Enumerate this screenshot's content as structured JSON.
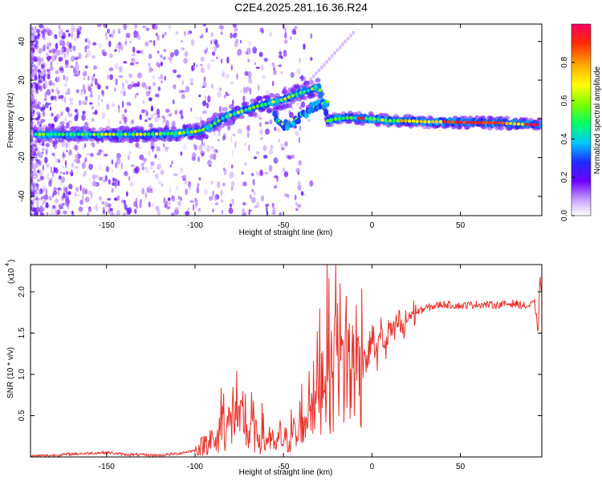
{
  "title": "C2E4.2025.281.16.36.R24",
  "colors": {
    "snr_line": "#e8312b",
    "axis": "#000000",
    "background": "#ffffff"
  },
  "chart_data": [
    {
      "type": "heatmap",
      "xlabel": "Height of straight line (km)",
      "ylabel": "Frequency (Hz)",
      "xlim": [
        -193,
        96
      ],
      "ylim": [
        -50,
        49
      ],
      "xticks": [
        -150,
        -100,
        -50,
        0,
        50
      ],
      "yticks": [
        -40,
        -20,
        0,
        20,
        40
      ],
      "ridge": {
        "x": [
          -190,
          -170,
          -150,
          -130,
          -110,
          -100,
          -95,
          -90,
          -85,
          -80,
          -75,
          -70,
          -65,
          -60,
          -55,
          -50,
          -45,
          -40,
          -35,
          -30,
          -25,
          -20,
          -15,
          -10,
          -5,
          0,
          5,
          10,
          20,
          30,
          40,
          50,
          60,
          70,
          80,
          90,
          95
        ],
        "y": [
          -8,
          -8,
          -8,
          -8,
          -7.5,
          -6.5,
          -5.5,
          -3,
          0,
          2,
          3.5,
          5,
          6.5,
          7.5,
          9,
          10,
          12,
          13.5,
          15,
          17,
          -1,
          0,
          0.5,
          0.5,
          0.2,
          0,
          -0.5,
          -1,
          -1,
          -1.5,
          -1.5,
          -1.8,
          -2,
          -2,
          -2.5,
          -3,
          -3
        ]
      },
      "branch": {
        "x": [
          -55,
          -50,
          -45,
          -40,
          -35,
          -30,
          -25
        ],
        "y": [
          1,
          -3,
          -2,
          2,
          5,
          7,
          9
        ]
      },
      "colorbar": {
        "label": "Normalized spectral amplitude",
        "ticks": [
          "0.0",
          "0.2",
          "0.4",
          "0.6",
          "0.8"
        ],
        "range": [
          0,
          1
        ]
      }
    },
    {
      "type": "line",
      "xlabel": "Height of straight line (km)",
      "ylabel": "SNR (10 * v/v)",
      "y_scale_label": "(x10",
      "y_scale_exponent": "4",
      "xlim": [
        -193,
        96
      ],
      "ylim": [
        0,
        23300
      ],
      "xticks": [
        -150,
        -100,
        -50,
        0,
        50
      ],
      "yticks": [
        "0.5",
        "1.0",
        "1.5",
        "2.0"
      ],
      "series": [
        {
          "name": "SNR",
          "x": [
            -193,
            -180,
            -170,
            -160,
            -150,
            -140,
            -120,
            -110,
            -100,
            -95,
            -92,
            -88,
            -85,
            -80,
            -77,
            -75,
            -72,
            -70,
            -68,
            -65,
            -62,
            -60,
            -58,
            -55,
            -52,
            -50,
            -48,
            -45,
            -42,
            -40,
            -38,
            -35,
            -32,
            -30,
            -28,
            -25,
            -22,
            -20,
            -18,
            -16,
            -15,
            -12,
            -10,
            -8,
            -5,
            -3,
            0,
            3,
            5,
            8,
            10,
            12,
            15,
            18,
            20,
            25,
            30,
            40,
            50,
            60,
            70,
            80,
            88,
            92,
            94,
            95,
            96
          ],
          "y": [
            100,
            200,
            350,
            450,
            550,
            300,
            200,
            400,
            800,
            1500,
            2500,
            1200,
            5500,
            3500,
            7000,
            3200,
            5500,
            2000,
            4500,
            2000,
            3500,
            1500,
            3000,
            1000,
            2500,
            2000,
            2000,
            3500,
            1800,
            6000,
            3000,
            9000,
            5500,
            12000,
            10000,
            14000,
            8000,
            23300,
            12500,
            9500,
            14500,
            9000,
            13500,
            10500,
            14000,
            11000,
            15000,
            12000,
            15500,
            13000,
            16000,
            14500,
            16500,
            15000,
            17000,
            17500,
            18000,
            18500,
            18300,
            18500,
            18400,
            18600,
            18200,
            18700,
            15000,
            22000,
            20000
          ]
        }
      ]
    }
  ]
}
